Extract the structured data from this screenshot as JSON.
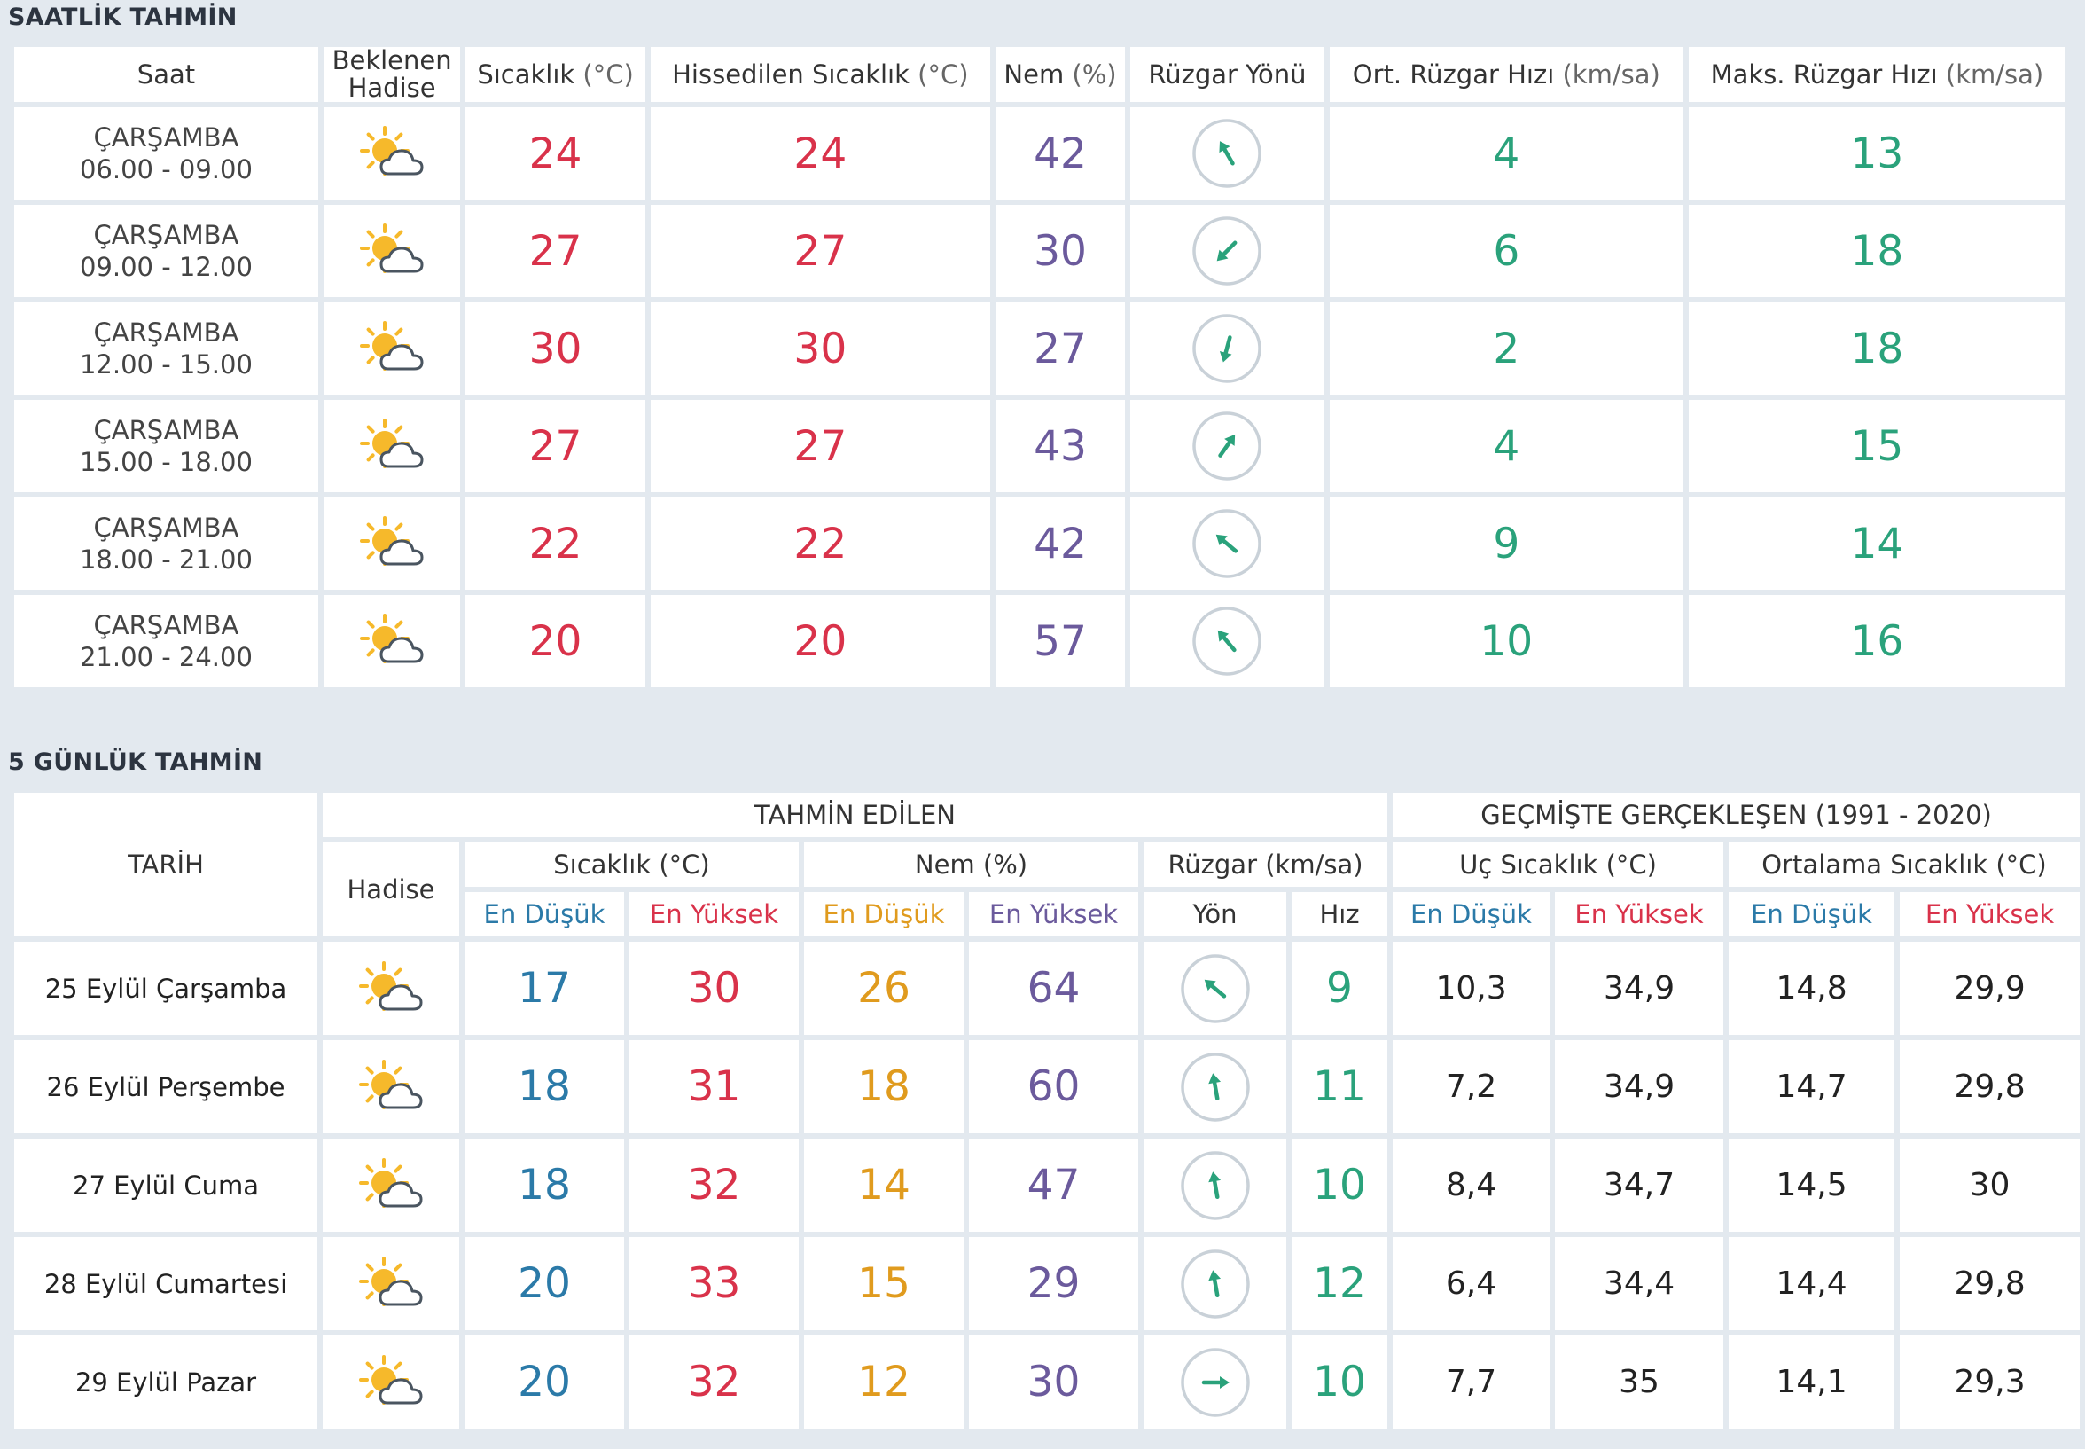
{
  "hourly": {
    "title": "SAATLİK TAHMİN",
    "headers": {
      "saat": "Saat",
      "hadise_line1": "Beklenen",
      "hadise_line2": "Hadise",
      "sicaklik": "Sıcaklık",
      "sicaklik_unit": "(°C)",
      "hissedilen": "Hissedilen Sıcaklık",
      "hissedilen_unit": "(°C)",
      "nem": "Nem",
      "nem_unit": "(%)",
      "ruzgar_yonu": "Rüzgar Yönü",
      "ort_ruzgar": "Ort. Rüzgar Hızı",
      "ort_ruzgar_unit": "(km/sa)",
      "maks_ruzgar": "Maks. Rüzgar Hızı",
      "maks_ruzgar_unit": "(km/sa)"
    },
    "rows": [
      {
        "day": "ÇARŞAMBA",
        "time": "06.00 - 09.00",
        "icon": "partly-cloudy-icon",
        "temp": "24",
        "feels": "24",
        "humidity": "42",
        "wind_dir_deg": 150,
        "wind_avg": "4",
        "wind_max": "13"
      },
      {
        "day": "ÇARŞAMBA",
        "time": "09.00 - 12.00",
        "icon": "partly-cloudy-icon",
        "temp": "27",
        "feels": "27",
        "humidity": "30",
        "wind_dir_deg": 45,
        "wind_avg": "6",
        "wind_max": "18"
      },
      {
        "day": "ÇARŞAMBA",
        "time": "12.00 - 15.00",
        "icon": "partly-cloudy-icon",
        "temp": "30",
        "feels": "30",
        "humidity": "27",
        "wind_dir_deg": 15,
        "wind_avg": "2",
        "wind_max": "18"
      },
      {
        "day": "ÇARŞAMBA",
        "time": "15.00 - 18.00",
        "icon": "partly-cloudy-icon",
        "temp": "27",
        "feels": "27",
        "humidity": "43",
        "wind_dir_deg": 215,
        "wind_avg": "4",
        "wind_max": "15"
      },
      {
        "day": "ÇARŞAMBA",
        "time": "18.00 - 21.00",
        "icon": "partly-cloudy-icon",
        "temp": "22",
        "feels": "22",
        "humidity": "42",
        "wind_dir_deg": 130,
        "wind_avg": "9",
        "wind_max": "14"
      },
      {
        "day": "ÇARŞAMBA",
        "time": "21.00 - 24.00",
        "icon": "partly-cloudy-icon",
        "temp": "20",
        "feels": "20",
        "humidity": "57",
        "wind_dir_deg": 140,
        "wind_avg": "10",
        "wind_max": "16"
      }
    ]
  },
  "daily": {
    "title": "5 GÜNLÜK TAHMİN",
    "headers": {
      "tarih": "TARİH",
      "tahmin_edilen": "TAHMİN EDİLEN",
      "gecmiste": "GEÇMİŞTE GERÇEKLEŞEN (1991 - 2020)",
      "hadise": "Hadise",
      "sicaklik": "Sıcaklık (°C)",
      "nem": "Nem (%)",
      "ruzgar": "Rüzgar (km/sa)",
      "uc_sicaklik": "Uç Sıcaklık (°C)",
      "ort_sicaklik": "Ortalama Sıcaklık (°C)",
      "en_dusuk": "En Düşük",
      "en_yuksek": "En Yüksek",
      "yon": "Yön",
      "hiz": "Hız"
    },
    "rows": [
      {
        "date": "25 Eylül Çarşamba",
        "icon": "partly-cloudy-icon",
        "temp_min": "17",
        "temp_max": "30",
        "hum_min": "26",
        "hum_max": "64",
        "wind_dir_deg": 130,
        "wind_speed": "9",
        "ext_min": "10,3",
        "ext_max": "34,9",
        "avg_min": "14,8",
        "avg_max": "29,9"
      },
      {
        "date": "26 Eylül Perşembe",
        "icon": "partly-cloudy-icon",
        "temp_min": "18",
        "temp_max": "31",
        "hum_min": "18",
        "hum_max": "60",
        "wind_dir_deg": 170,
        "wind_speed": "11",
        "ext_min": "7,2",
        "ext_max": "34,9",
        "avg_min": "14,7",
        "avg_max": "29,8"
      },
      {
        "date": "27 Eylül Cuma",
        "icon": "partly-cloudy-icon",
        "temp_min": "18",
        "temp_max": "32",
        "hum_min": "14",
        "hum_max": "47",
        "wind_dir_deg": 170,
        "wind_speed": "10",
        "ext_min": "8,4",
        "ext_max": "34,7",
        "avg_min": "14,5",
        "avg_max": "30"
      },
      {
        "date": "28 Eylül Cumartesi",
        "icon": "partly-cloudy-icon",
        "temp_min": "20",
        "temp_max": "33",
        "hum_min": "15",
        "hum_max": "29",
        "wind_dir_deg": 170,
        "wind_speed": "12",
        "ext_min": "6,4",
        "ext_max": "34,4",
        "avg_min": "14,4",
        "avg_max": "29,8"
      },
      {
        "date": "29 Eylül Pazar",
        "icon": "partly-cloudy-icon",
        "temp_min": "20",
        "temp_max": "32",
        "hum_min": "12",
        "hum_max": "30",
        "wind_dir_deg": 270,
        "wind_speed": "10",
        "ext_min": "7,7",
        "ext_max": "35",
        "avg_min": "14,1",
        "avg_max": "29,3"
      }
    ]
  },
  "colors": {
    "temp": "#d9324a",
    "humidity": "#6b5a9c",
    "wind": "#2aa27b",
    "min_temp": "#2b7aa8",
    "min_humidity": "#e09b1e",
    "sun": "#f6b92b",
    "cloud_stroke": "#4a5560"
  }
}
